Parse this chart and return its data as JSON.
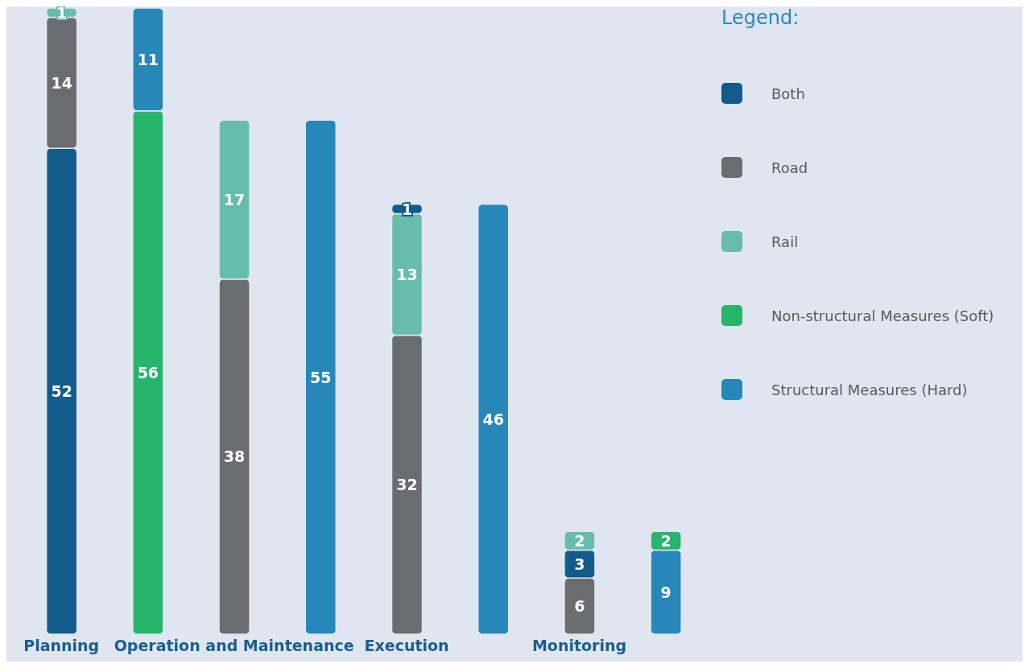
{
  "chart_data": {
    "type": "bar",
    "stacked": true,
    "categories": [
      "Planning",
      null,
      "Operation and Maintenance",
      null,
      "Execution",
      null,
      "Monitoring",
      null
    ],
    "legend_title": "Legend:",
    "legend": "top right",
    "data_labels": true,
    "series": [
      {
        "name": "Both",
        "color": "#125b8a",
        "values": [
          52,
          null,
          null,
          null,
          null,
          null,
          null,
          null
        ]
      },
      {
        "name": "Road",
        "color": "#6b6c70",
        "values": [
          14,
          null,
          38,
          null,
          32,
          null,
          6,
          null
        ]
      },
      {
        "color": "#125b8a",
        "values": [
          null,
          null,
          null,
          null,
          null,
          null,
          3,
          null
        ]
      },
      {
        "name": "Rail",
        "color": "#67bcad",
        "values": [
          1,
          null,
          17,
          null,
          13,
          null,
          2,
          null
        ]
      },
      {
        "color": "#125b8a",
        "values": [
          null,
          null,
          null,
          null,
          1,
          null,
          null,
          null
        ]
      },
      {
        "name": "Non-structural Measures (Soft)",
        "color": "#27b56b",
        "values": [
          null,
          56,
          null,
          null,
          null,
          null,
          null,
          null
        ]
      },
      {
        "name": "Structural Measures (Hard)",
        "color": "#2787b9",
        "values": [
          null,
          11,
          null,
          55,
          null,
          46,
          null,
          9
        ]
      },
      {
        "color": "#27b56b",
        "values": [
          null,
          null,
          null,
          null,
          null,
          null,
          null,
          2
        ]
      }
    ]
  }
}
